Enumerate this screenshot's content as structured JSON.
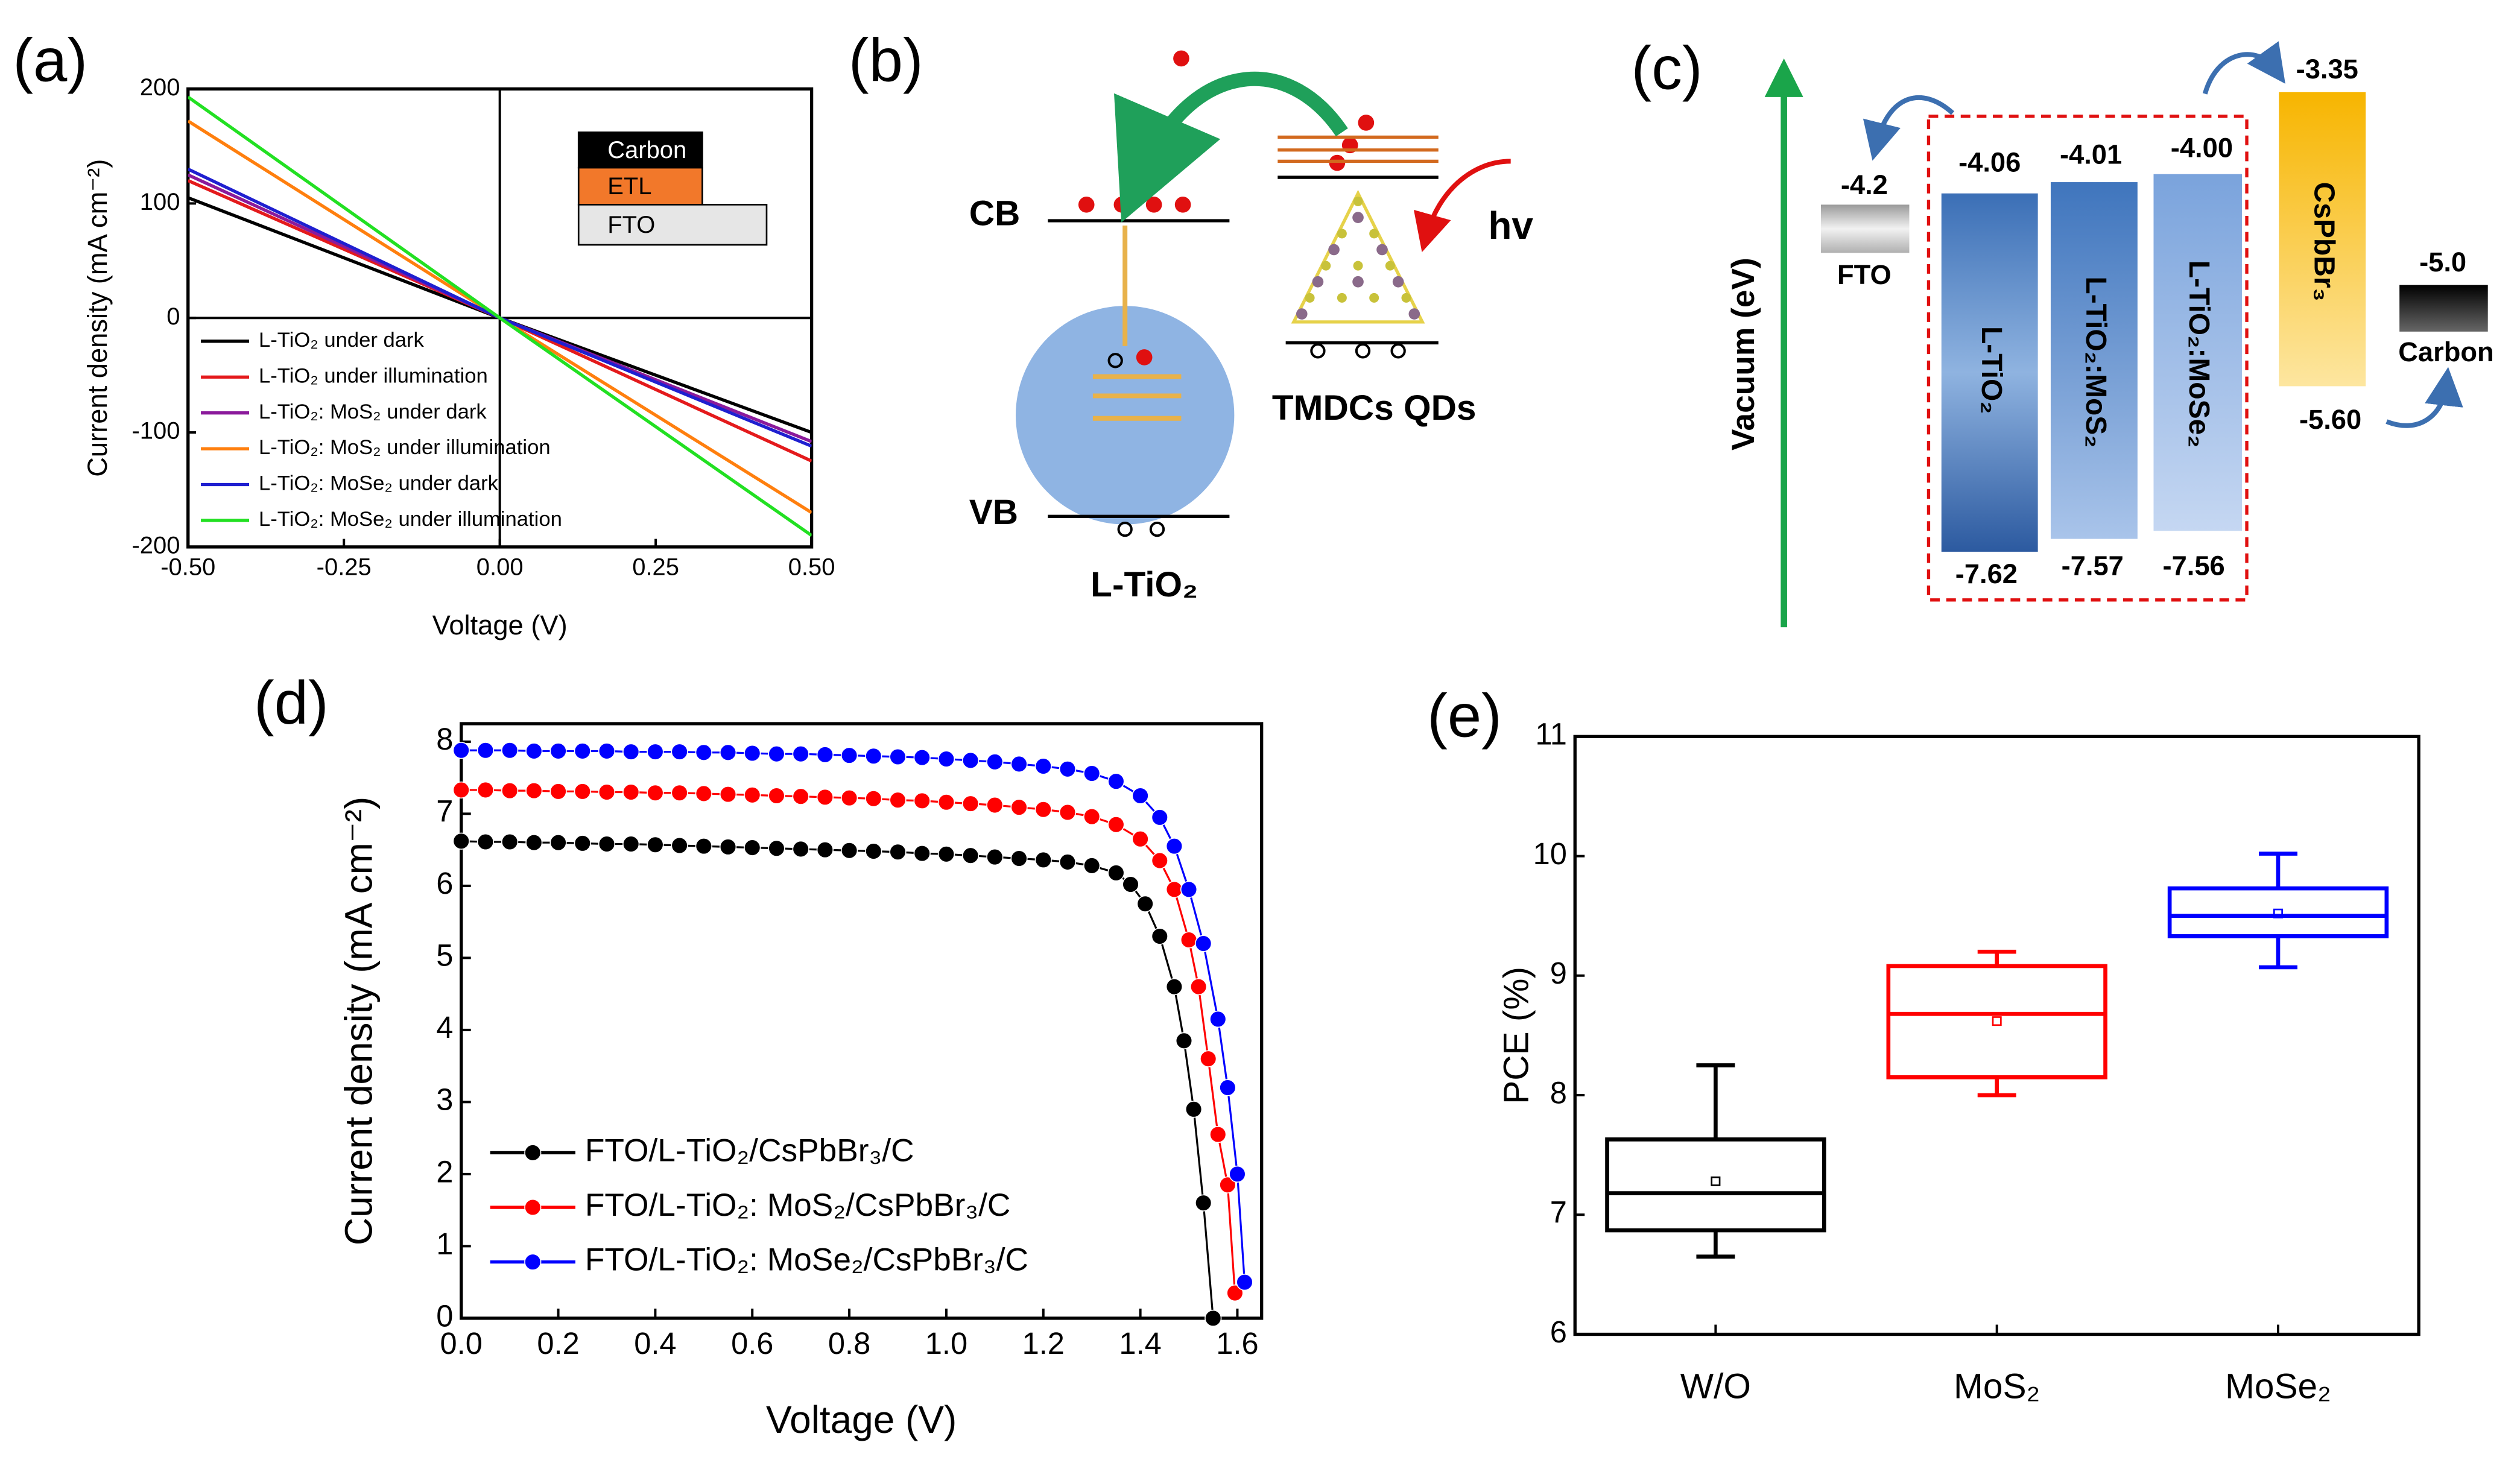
{
  "chart_data": [
    {
      "type": "line",
      "label": "(a)",
      "xlabel": "Voltage (V)",
      "ylabel": "Current density (mA cm⁻²)",
      "xlim": [
        -0.5,
        0.5
      ],
      "ylim": [
        -200,
        200
      ],
      "xticks": [
        {
          "value": -0.5,
          "label": "-0.50"
        },
        {
          "value": -0.25,
          "label": "-0.25"
        },
        {
          "value": 0,
          "label": "0.00"
        },
        {
          "value": 0.25,
          "label": "0.25"
        },
        {
          "value": 0.5,
          "label": "0.50"
        }
      ],
      "yticks": [
        -200,
        -100,
        0,
        100,
        200
      ],
      "x": [
        -0.5,
        0,
        0.5
      ],
      "series": [
        {
          "name": "L-TiO₂ under dark",
          "color": "#000000",
          "values": [
            105,
            0,
            -100
          ]
        },
        {
          "name": "L-TiO₂ under illumination",
          "color": "#e41a1c",
          "values": [
            120,
            0,
            -125
          ]
        },
        {
          "name": "L-TiO₂: MoS₂ under dark",
          "color": "#8b1a9b",
          "values": [
            125,
            0,
            -108
          ]
        },
        {
          "name": "L-TiO₂: MoS₂ under illumination",
          "color": "#ff7f0e",
          "values": [
            172,
            0,
            -170
          ]
        },
        {
          "name": "L-TiO₂: MoSe₂ under dark",
          "color": "#1f1fd0",
          "values": [
            130,
            0,
            -112
          ]
        },
        {
          "name": "L-TiO₂: MoSe₂ under illumination",
          "color": "#22e022",
          "values": [
            193,
            0,
            -190
          ]
        }
      ],
      "inset": [
        "Carbon",
        "ETL",
        "FTO"
      ]
    },
    {
      "type": "line",
      "label": "(d)",
      "markers": true,
      "xlabel": "Voltage (V)",
      "ylabel": "Current density (mA cm⁻²)",
      "xlim": [
        0,
        1.65
      ],
      "ylim": [
        0,
        8.25
      ],
      "xticks": [
        {
          "value": 0,
          "label": "0.0"
        },
        0.2,
        0.4,
        0.6,
        0.8,
        {
          "value": 1,
          "label": "1.0"
        },
        1.2,
        1.4,
        1.6
      ],
      "yticks": [
        0,
        1,
        2,
        3,
        4,
        5,
        6,
        7,
        8
      ],
      "series": [
        {
          "name": "FTO/L-TiO₂/CsPbBr₃/C",
          "color": "#000000",
          "x": [
            0,
            0.05,
            0.1,
            0.15,
            0.2,
            0.25,
            0.3,
            0.35,
            0.4,
            0.45,
            0.5,
            0.55,
            0.6,
            0.65,
            0.7,
            0.75,
            0.8,
            0.85,
            0.9,
            0.95,
            1,
            1.05,
            1.1,
            1.15,
            1.2,
            1.25,
            1.3,
            1.35,
            1.38,
            1.41,
            1.44,
            1.47,
            1.49,
            1.51,
            1.53,
            1.55
          ],
          "values": [
            6.62,
            6.61,
            6.61,
            6.6,
            6.6,
            6.59,
            6.58,
            6.58,
            6.57,
            6.56,
            6.55,
            6.54,
            6.53,
            6.52,
            6.51,
            6.5,
            6.49,
            6.48,
            6.47,
            6.45,
            6.44,
            6.42,
            6.4,
            6.38,
            6.36,
            6.33,
            6.28,
            6.18,
            6.02,
            5.75,
            5.3,
            4.6,
            3.85,
            2.9,
            1.6,
            0
          ]
        },
        {
          "name": "FTO/L-TiO₂: MoS₂/CsPbBr₃/C",
          "color": "#ff0000",
          "x": [
            0,
            0.05,
            0.1,
            0.15,
            0.2,
            0.25,
            0.3,
            0.35,
            0.4,
            0.45,
            0.5,
            0.55,
            0.6,
            0.65,
            0.7,
            0.75,
            0.8,
            0.85,
            0.9,
            0.95,
            1,
            1.05,
            1.1,
            1.15,
            1.2,
            1.25,
            1.3,
            1.35,
            1.4,
            1.44,
            1.47,
            1.5,
            1.52,
            1.54,
            1.56,
            1.58,
            1.595
          ],
          "values": [
            7.33,
            7.33,
            7.32,
            7.32,
            7.31,
            7.31,
            7.3,
            7.3,
            7.29,
            7.29,
            7.28,
            7.27,
            7.26,
            7.25,
            7.24,
            7.23,
            7.22,
            7.21,
            7.19,
            7.18,
            7.16,
            7.14,
            7.12,
            7.09,
            7.06,
            7.02,
            6.96,
            6.85,
            6.65,
            6.35,
            5.95,
            5.25,
            4.6,
            3.6,
            2.55,
            1.85,
            0.35
          ]
        },
        {
          "name": "FTO/L-TiO₂: MoSe₂/CsPbBr₃/C",
          "color": "#0000ff",
          "x": [
            0,
            0.05,
            0.1,
            0.15,
            0.2,
            0.25,
            0.3,
            0.35,
            0.4,
            0.45,
            0.5,
            0.55,
            0.6,
            0.65,
            0.7,
            0.75,
            0.8,
            0.85,
            0.9,
            0.95,
            1,
            1.05,
            1.1,
            1.15,
            1.2,
            1.25,
            1.3,
            1.35,
            1.4,
            1.44,
            1.47,
            1.5,
            1.53,
            1.56,
            1.58,
            1.6,
            1.615
          ],
          "values": [
            7.88,
            7.88,
            7.88,
            7.87,
            7.87,
            7.87,
            7.87,
            7.86,
            7.86,
            7.86,
            7.85,
            7.85,
            7.84,
            7.83,
            7.83,
            7.82,
            7.81,
            7.8,
            7.79,
            7.78,
            7.76,
            7.74,
            7.72,
            7.69,
            7.66,
            7.62,
            7.56,
            7.45,
            7.25,
            6.95,
            6.55,
            5.95,
            5.2,
            4.15,
            3.2,
            2,
            0.5
          ]
        }
      ]
    },
    {
      "type": "box",
      "label": "(e)",
      "ylabel": "PCE (%)",
      "ylim": [
        6,
        11
      ],
      "yticks": [
        6,
        7,
        8,
        9,
        10,
        11
      ],
      "categories": [
        "W/O",
        "MoS₂",
        "MoSe₂"
      ],
      "boxes": [
        {
          "color": "#000000",
          "min": 6.65,
          "q1": 6.87,
          "median": 7.18,
          "q3": 7.63,
          "max": 8.25,
          "mean": 7.28
        },
        {
          "color": "#ff0000",
          "min": 8.0,
          "q1": 8.15,
          "median": 8.68,
          "q3": 9.08,
          "max": 9.2,
          "mean": 8.62
        },
        {
          "color": "#0000ff",
          "min": 9.07,
          "q1": 9.33,
          "median": 9.5,
          "q3": 9.73,
          "max": 10.02,
          "mean": 9.52
        }
      ]
    }
  ],
  "diagram_b": {
    "label": "(b)",
    "cb": "CB",
    "vb": "VB",
    "material": "L-TiO₂",
    "qds": "TMDCs QDs",
    "light": "hv"
  },
  "diagram_c": {
    "label": "(c)",
    "axis": "Vacuum (eV)",
    "fto": {
      "name": "FTO",
      "level": "-4.2"
    },
    "layers": [
      {
        "name": "L-TiO₂",
        "top": "-4.06",
        "bottom": "-7.62"
      },
      {
        "name": "L-TiO₂:MoS₂",
        "top": "-4.01",
        "bottom": "-7.57"
      },
      {
        "name": "L-TiO₂:MoSe₂",
        "top": "-4.00",
        "bottom": "-7.56"
      }
    ],
    "perovskite": {
      "name": "CsPbBr₃",
      "top": "-3.35",
      "bottom": "-5.60"
    },
    "carbon": {
      "name": "Carbon",
      "level": "-5.0"
    }
  }
}
